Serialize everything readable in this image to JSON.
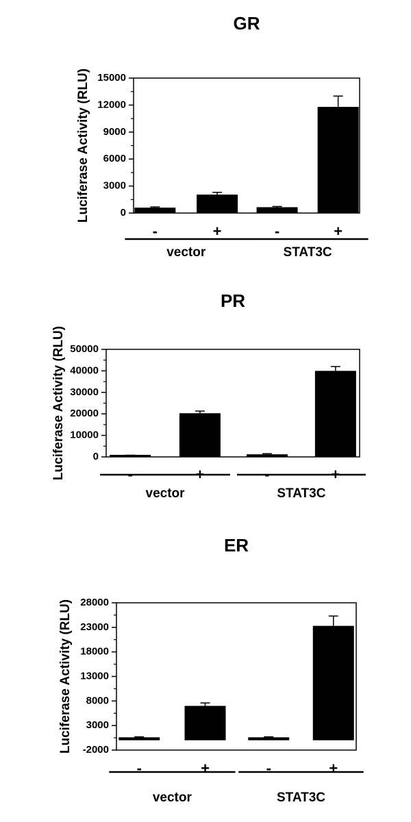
{
  "chart_data": [
    {
      "type": "bar",
      "title": "GR",
      "ylabel": "Luciferase Activity (RLU)",
      "ylim": [
        0,
        15000
      ],
      "yticks": [
        0,
        3000,
        6000,
        9000,
        12000,
        15000
      ],
      "ytick_labels": [
        "0",
        "3000",
        "6000",
        "9000",
        "12000",
        "15000"
      ],
      "treatments": [
        "-",
        "+",
        "-",
        "+"
      ],
      "groups": [
        "vector",
        "STAT3C"
      ],
      "values": [
        600,
        2050,
        650,
        11800
      ],
      "errors": [
        80,
        250,
        80,
        1200
      ]
    },
    {
      "type": "bar",
      "title": "PR",
      "ylabel": "Luciferase Activity (RLU)",
      "ylim": [
        0,
        50000
      ],
      "yticks": [
        0,
        10000,
        20000,
        30000,
        40000,
        50000
      ],
      "ytick_labels": [
        "0",
        "10000",
        "20000",
        "30000",
        "40000",
        "50000"
      ],
      "treatments": [
        "-",
        "+",
        "-",
        "+"
      ],
      "groups": [
        "vector",
        "STAT3C"
      ],
      "values": [
        600,
        20300,
        1200,
        40000
      ],
      "errors": [
        200,
        1000,
        300,
        2000
      ]
    },
    {
      "type": "bar",
      "title": "ER",
      "ylabel": "Luciferase Activity (RLU)",
      "ylim": [
        -2000,
        28000
      ],
      "yticks": [
        -2000,
        3000,
        8000,
        13000,
        18000,
        23000,
        28000
      ],
      "ytick_labels": [
        "-2000",
        "3000",
        "8000",
        "13000",
        "18000",
        "23000",
        "28000"
      ],
      "treatments": [
        "-",
        "+",
        "-",
        "+"
      ],
      "groups": [
        "vector",
        "STAT3C"
      ],
      "values": [
        600,
        7000,
        600,
        23300
      ],
      "errors": [
        100,
        600,
        100,
        2000
      ]
    }
  ]
}
